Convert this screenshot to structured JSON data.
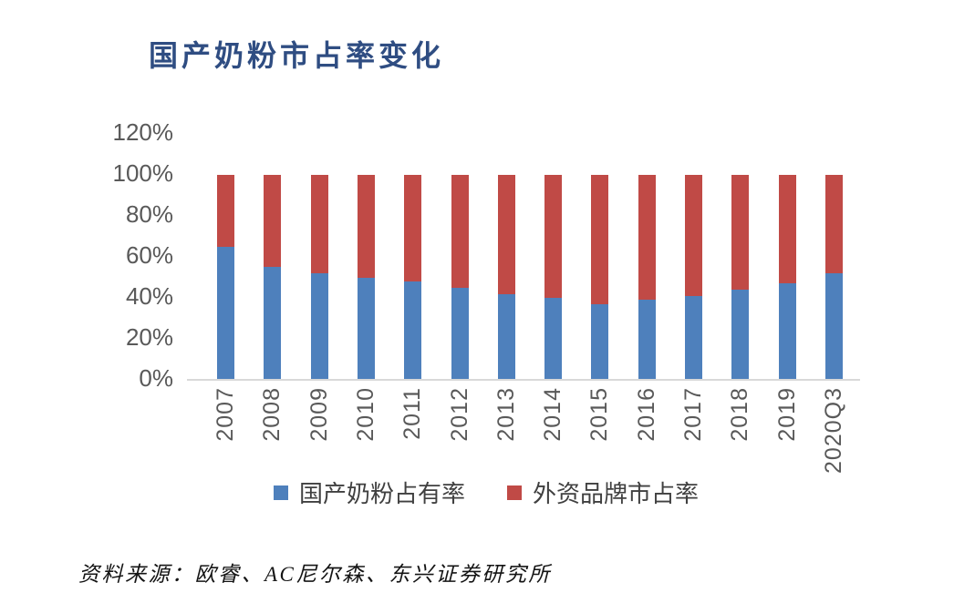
{
  "page": {
    "background": "#ffffff"
  },
  "title": {
    "text": "国产奶粉市占率变化",
    "color": "#2f4d82"
  },
  "source": {
    "text": "资料来源：欧睿、AC尼尔森、东兴证券研究所",
    "color": "#141414"
  },
  "axis": {
    "text_color": "#595959",
    "line_color": "#d9d9d9",
    "legend_text_color": "#404040"
  },
  "chart_data": {
    "type": "bar",
    "stacked": true,
    "title": "国产奶粉市占率变化",
    "categories": [
      "2007",
      "2008",
      "2009",
      "2010",
      "2011",
      "2012",
      "2013",
      "2014",
      "2015",
      "2016",
      "2017",
      "2018",
      "2019",
      "2020Q3"
    ],
    "series": [
      {
        "name": "国产奶粉占有率",
        "color": "#4e80bc",
        "values": [
          65,
          55,
          52,
          50,
          48,
          45,
          42,
          40,
          37,
          39,
          41,
          44,
          47,
          52
        ]
      },
      {
        "name": "外资品牌市占率",
        "color": "#c04a46",
        "values": [
          35,
          45,
          48,
          50,
          52,
          55,
          58,
          60,
          63,
          61,
          59,
          56,
          53,
          48
        ]
      }
    ],
    "xlabel": "",
    "ylabel": "",
    "ylim": [
      0,
      120
    ],
    "yticks": [
      "0%",
      "20%",
      "40%",
      "60%",
      "80%",
      "100%",
      "120%"
    ],
    "grid": false,
    "legend_position": "bottom",
    "x_labels_rotation": -90
  }
}
